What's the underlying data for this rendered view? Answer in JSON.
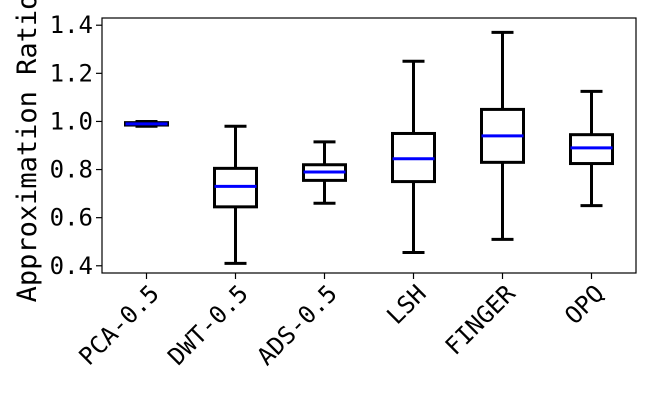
{
  "chart_data": {
    "type": "box",
    "title": "",
    "xlabel": "",
    "ylabel": "Approximation Ratio",
    "ylim": [
      0.37,
      1.43
    ],
    "yticks": [
      0.4,
      0.6,
      0.8,
      1.0,
      1.2,
      1.4
    ],
    "ytick_labels": [
      "0.4",
      "0.6",
      "0.8",
      "1.0",
      "1.2",
      "1.4"
    ],
    "grid": false,
    "legend": "none",
    "colors": {
      "box": "#000000",
      "median": "#0000ff"
    },
    "categories": [
      "PCA-0.5",
      "DWT-0.5",
      "ADS-0.5",
      "LSH",
      "FINGER",
      "OPQ"
    ],
    "boxes": [
      {
        "whisker_low": 0.98,
        "q1": 0.985,
        "median": 0.99,
        "q3": 0.995,
        "whisker_high": 1.0
      },
      {
        "whisker_low": 0.41,
        "q1": 0.645,
        "median": 0.73,
        "q3": 0.805,
        "whisker_high": 0.98
      },
      {
        "whisker_low": 0.66,
        "q1": 0.755,
        "median": 0.79,
        "q3": 0.82,
        "whisker_high": 0.915
      },
      {
        "whisker_low": 0.455,
        "q1": 0.75,
        "median": 0.845,
        "q3": 0.95,
        "whisker_high": 1.25
      },
      {
        "whisker_low": 0.51,
        "q1": 0.83,
        "median": 0.94,
        "q3": 1.05,
        "whisker_high": 1.37
      },
      {
        "whisker_low": 0.65,
        "q1": 0.825,
        "median": 0.89,
        "q3": 0.945,
        "whisker_high": 1.125
      }
    ]
  }
}
